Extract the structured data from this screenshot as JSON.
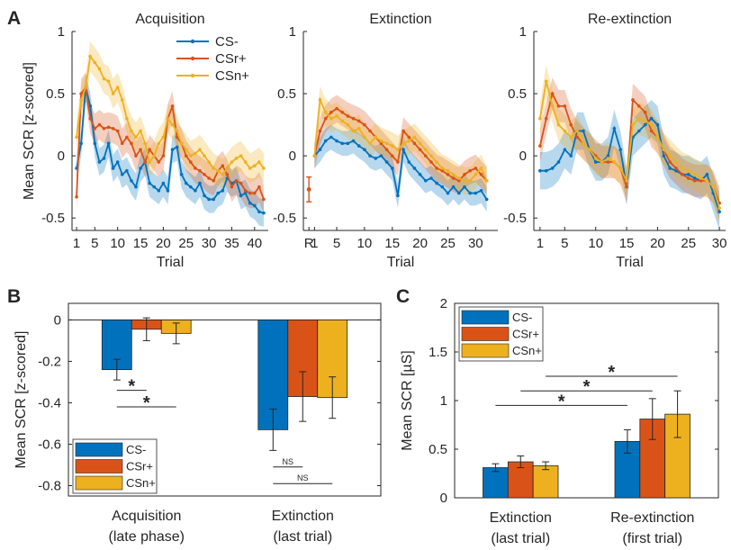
{
  "colors": {
    "cs_minus": "#0072BD",
    "csr_plus": "#D95319",
    "csn_plus": "#EDB120",
    "axis": "#262626"
  },
  "chart_data": [
    {
      "panel": "A",
      "type": "line",
      "title": "Acquisition",
      "xlabel": "Trial",
      "ylabel": "Mean SCR [z-scored]",
      "xlim": [
        0,
        43
      ],
      "ylim": [
        -0.6,
        1.0
      ],
      "xticks": [
        1,
        5,
        10,
        15,
        20,
        25,
        30,
        35,
        40
      ],
      "yticks": [
        -0.5,
        0,
        0.5,
        1
      ],
      "yticklabels": [
        "-0.5",
        "0",
        "0.5",
        "1"
      ],
      "legend": {
        "position": "top-right",
        "entries": [
          "CS-",
          "CSr+",
          "CSn+"
        ]
      },
      "series": [
        {
          "name": "CS-",
          "color": "#0072BD",
          "band": 0.11,
          "values": [
            -0.1,
            0.1,
            0.55,
            0.4,
            0.1,
            -0.05,
            -0.02,
            0.1,
            -0.1,
            -0.05,
            -0.15,
            -0.12,
            -0.2,
            -0.25,
            -0.1,
            -0.05,
            -0.22,
            -0.25,
            -0.28,
            -0.22,
            -0.28,
            0.05,
            0.07,
            -0.15,
            -0.22,
            -0.25,
            -0.28,
            -0.22,
            -0.32,
            -0.35,
            -0.35,
            -0.3,
            -0.28,
            -0.18,
            -0.22,
            -0.2,
            -0.32,
            -0.3,
            -0.38,
            -0.4,
            -0.45,
            -0.46
          ]
        },
        {
          "name": "CSr+",
          "color": "#D95319",
          "band": 0.12,
          "values": [
            -0.33,
            0.5,
            0.55,
            0.3,
            0.22,
            0.25,
            0.22,
            0.23,
            0.22,
            0.2,
            0.1,
            0.15,
            0.1,
            0.0,
            0.05,
            -0.05,
            0.05,
            0.0,
            -0.05,
            0.0,
            0.3,
            0.4,
            0.15,
            0.1,
            0.0,
            -0.05,
            -0.1,
            -0.12,
            -0.15,
            -0.18,
            -0.2,
            -0.12,
            -0.08,
            -0.15,
            -0.25,
            -0.2,
            -0.22,
            -0.28,
            -0.3,
            -0.3,
            -0.25,
            -0.35
          ]
        },
        {
          "name": "CSn+",
          "color": "#EDB120",
          "band": 0.12,
          "values": [
            0.15,
            0.45,
            0.55,
            0.8,
            0.75,
            0.7,
            0.62,
            0.6,
            0.5,
            0.55,
            0.45,
            0.3,
            0.2,
            0.15,
            0.2,
            0.1,
            -0.05,
            0.0,
            0.1,
            0.15,
            0.3,
            0.25,
            0.2,
            0.1,
            0.05,
            0.0,
            0.02,
            0.05,
            0.0,
            -0.05,
            -0.1,
            -0.12,
            -0.15,
            -0.1,
            -0.05,
            -0.02,
            0.0,
            -0.05,
            -0.1,
            -0.08,
            -0.05,
            -0.1
          ]
        }
      ]
    },
    {
      "panel": "A",
      "type": "line",
      "title": "Extinction",
      "xlabel": "Trial",
      "xlim": [
        -1,
        34
      ],
      "ylim": [
        -0.6,
        1.0
      ],
      "xticks": [
        0,
        1,
        5,
        10,
        15,
        20,
        25,
        30
      ],
      "xticklabels": [
        "R",
        "1",
        "5",
        "10",
        "15",
        "20",
        "25",
        "30"
      ],
      "yticks": [
        -0.5,
        0,
        0.5,
        1
      ],
      "yticklabels": [
        "-0.5",
        "0",
        "0.5",
        "1"
      ],
      "reinstatement": {
        "x": 0,
        "series": "CSr+",
        "value": -0.27,
        "error": 0.1
      },
      "series": [
        {
          "name": "CS-",
          "color": "#0072BD",
          "band": 0.1,
          "values": [
            0.0,
            0.05,
            0.12,
            0.15,
            0.12,
            0.1,
            0.1,
            0.12,
            0.08,
            0.05,
            0.0,
            -0.02,
            0.0,
            -0.05,
            -0.1,
            -0.32,
            0.05,
            -0.05,
            -0.1,
            -0.15,
            -0.2,
            -0.18,
            -0.22,
            -0.25,
            -0.3,
            -0.25,
            -0.3,
            -0.25,
            -0.3,
            -0.3,
            -0.28,
            -0.35
          ]
        },
        {
          "name": "CSr+",
          "color": "#D95319",
          "band": 0.11,
          "values": [
            0.0,
            0.2,
            0.3,
            0.35,
            0.38,
            0.35,
            0.32,
            0.3,
            0.28,
            0.25,
            0.2,
            0.15,
            0.1,
            0.05,
            0.0,
            -0.05,
            0.2,
            0.15,
            0.1,
            0.05,
            0.0,
            -0.05,
            -0.1,
            -0.12,
            -0.15,
            -0.18,
            -0.2,
            -0.15,
            -0.12,
            -0.1,
            -0.15,
            -0.2
          ]
        },
        {
          "name": "CSn+",
          "color": "#EDB120",
          "band": 0.11,
          "values": [
            0.0,
            0.45,
            0.35,
            0.3,
            0.32,
            0.28,
            0.25,
            0.2,
            0.22,
            0.15,
            0.1,
            0.15,
            0.12,
            0.1,
            0.08,
            0.05,
            0.1,
            0.12,
            0.15,
            0.1,
            0.05,
            0.0,
            -0.05,
            -0.1,
            -0.12,
            -0.15,
            -0.18,
            -0.2,
            -0.2,
            -0.15,
            -0.1,
            -0.2
          ]
        }
      ]
    },
    {
      "panel": "A",
      "type": "line",
      "title": "Re-extinction",
      "xlabel": "Trial",
      "xlim": [
        0,
        31
      ],
      "ylim": [
        -0.6,
        1.0
      ],
      "xticks": [
        1,
        5,
        10,
        15,
        20,
        25,
        30
      ],
      "yticks": [
        -0.5,
        0,
        0.5,
        1
      ],
      "yticklabels": [
        "-0.5",
        "0",
        "0.5",
        "1"
      ],
      "series": [
        {
          "name": "CS-",
          "color": "#0072BD",
          "band": 0.15,
          "values": [
            -0.12,
            -0.12,
            -0.1,
            -0.05,
            0.05,
            0.0,
            0.2,
            0.2,
            0.05,
            -0.05,
            -0.05,
            0.0,
            0.22,
            0.05,
            -0.25,
            0.15,
            0.2,
            0.25,
            0.3,
            0.25,
            0.0,
            -0.1,
            -0.12,
            -0.15,
            -0.15,
            -0.18,
            -0.2,
            -0.15,
            -0.3,
            -0.45
          ]
        },
        {
          "name": "CSr+",
          "color": "#D95319",
          "band": 0.13,
          "values": [
            0.08,
            0.3,
            0.5,
            0.4,
            0.4,
            0.25,
            0.15,
            0.1,
            0.05,
            0.0,
            -0.05,
            -0.05,
            -0.05,
            -0.1,
            -0.25,
            0.45,
            0.4,
            0.35,
            0.2,
            0.15,
            0.05,
            -0.05,
            -0.1,
            -0.15,
            -0.18,
            -0.2,
            -0.2,
            -0.2,
            -0.25,
            -0.38
          ]
        },
        {
          "name": "CSn+",
          "color": "#EDB120",
          "band": 0.13,
          "values": [
            0.3,
            0.6,
            0.4,
            0.25,
            0.2,
            0.15,
            0.2,
            0.1,
            0.05,
            -0.02,
            -0.05,
            -0.02,
            -0.05,
            -0.1,
            -0.2,
            0.25,
            0.3,
            0.28,
            0.25,
            0.15,
            0.05,
            0.0,
            -0.05,
            -0.1,
            -0.12,
            -0.15,
            -0.18,
            -0.2,
            -0.25,
            -0.42
          ]
        }
      ]
    },
    {
      "panel": "B",
      "type": "bar",
      "ylabel": "Mean SCR [z-scored]",
      "categories": [
        "Acquisition\n(late phase)",
        "Extinction\n(last trial)"
      ],
      "category_lines": [
        [
          "Acquisition",
          "(late phase)"
        ],
        [
          "Extinction",
          "(last trial)"
        ]
      ],
      "ylim": [
        -0.85,
        0.08
      ],
      "yticks": [
        0,
        -0.2,
        -0.4,
        -0.6,
        -0.8
      ],
      "yticklabels": [
        "0",
        "-0.2",
        "-0.4",
        "-0.6",
        "-0.8"
      ],
      "legend": {
        "position": "bottom-left",
        "entries": [
          "CS-",
          "CSr+",
          "CSn+"
        ]
      },
      "series": [
        {
          "name": "CS-",
          "color": "#0072BD",
          "values": [
            -0.24,
            -0.53
          ],
          "errors": [
            0.05,
            0.1
          ]
        },
        {
          "name": "CSr+",
          "color": "#D95319",
          "values": [
            -0.045,
            -0.37
          ],
          "errors": [
            0.055,
            0.12
          ]
        },
        {
          "name": "CSn+",
          "color": "#EDB120",
          "values": [
            -0.065,
            -0.375
          ],
          "errors": [
            0.05,
            0.1
          ]
        }
      ],
      "comparisons": [
        {
          "label": "*",
          "from": [
            0,
            0
          ],
          "to": [
            0,
            1
          ],
          "y": -0.34
        },
        {
          "label": "*",
          "from": [
            0,
            0
          ],
          "to": [
            0,
            2
          ],
          "y": -0.42
        },
        {
          "label": "NS",
          "from": [
            1,
            0
          ],
          "to": [
            1,
            1
          ],
          "y": -0.71
        },
        {
          "label": "NS",
          "from": [
            1,
            0
          ],
          "to": [
            1,
            2
          ],
          "y": -0.79
        }
      ]
    },
    {
      "panel": "C",
      "type": "bar",
      "ylabel": "Mean SCR [µS]",
      "categories": [
        "Extinction\n(last trial)",
        "Re-extinction\n(first trial)"
      ],
      "category_lines": [
        [
          "Extinction",
          "(last trial)"
        ],
        [
          "Re-extinction",
          "(first trial)"
        ]
      ],
      "ylim": [
        0,
        2
      ],
      "yticks": [
        0,
        0.5,
        1,
        1.5,
        2
      ],
      "yticklabels": [
        "0",
        "0.5",
        "1",
        "1.5",
        "2"
      ],
      "legend": {
        "position": "top-left",
        "entries": [
          "CS-",
          "CSr+",
          "CSn+"
        ]
      },
      "series": [
        {
          "name": "CS-",
          "color": "#0072BD",
          "values": [
            0.31,
            0.58
          ],
          "errors": [
            0.04,
            0.12
          ]
        },
        {
          "name": "CSr+",
          "color": "#D95319",
          "values": [
            0.37,
            0.81
          ],
          "errors": [
            0.06,
            0.21
          ]
        },
        {
          "name": "CSn+",
          "color": "#EDB120",
          "values": [
            0.33,
            0.86
          ],
          "errors": [
            0.04,
            0.24
          ]
        }
      ],
      "comparisons": [
        {
          "label": "*",
          "from": [
            0,
            0
          ],
          "to": [
            1,
            0
          ],
          "y": 0.95
        },
        {
          "label": "*",
          "from": [
            0,
            1
          ],
          "to": [
            1,
            1
          ],
          "y": 1.1
        },
        {
          "label": "*",
          "from": [
            0,
            2
          ],
          "to": [
            1,
            2
          ],
          "y": 1.25
        }
      ]
    }
  ],
  "panel_labels": [
    "A",
    "B",
    "C"
  ]
}
